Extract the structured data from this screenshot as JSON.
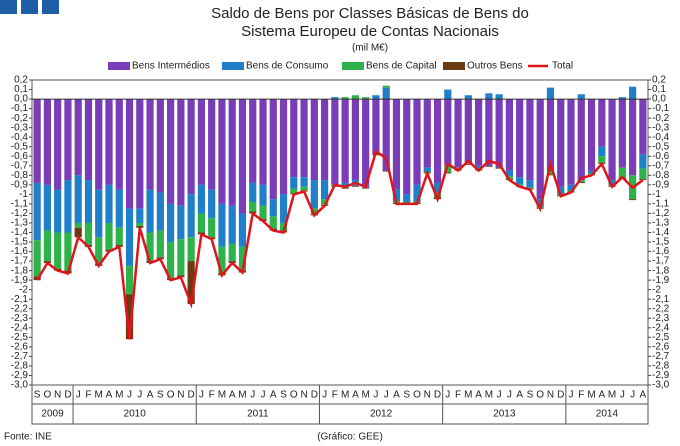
{
  "chart_data": {
    "type": "bar",
    "title": "Saldo de Bens por Classes Básicas de Bens do",
    "title_line2": "Sistema Europeu de Contas Nacionais",
    "subtitle": "(mil M€)",
    "source": "Fonte: INE",
    "credit": "(Gráfico: GEE)",
    "categories": [
      "S",
      "O",
      "N",
      "D",
      "J",
      "F",
      "M",
      "A",
      "M",
      "J",
      "J",
      "A",
      "S",
      "O",
      "N",
      "D",
      "J",
      "F",
      "M",
      "A",
      "M",
      "J",
      "J",
      "A",
      "S",
      "O",
      "N",
      "D",
      "J",
      "F",
      "M",
      "A",
      "M",
      "J",
      "J",
      "A",
      "S",
      "O",
      "N",
      "D",
      "J",
      "F",
      "M",
      "A",
      "M",
      "J",
      "J",
      "A",
      "S",
      "O",
      "N",
      "D",
      "J",
      "F",
      "M",
      "A",
      "M",
      "J",
      "J",
      "A"
    ],
    "years": [
      "2009",
      "2010",
      "2011",
      "2012",
      "2013",
      "2014"
    ],
    "ylim": [
      -3.0,
      0.2
    ],
    "yticks": [
      {
        "value": 0.2,
        "label": "0,2"
      },
      {
        "value": 0.1,
        "label": "0,1"
      },
      {
        "value": 0,
        "label": "0,0"
      },
      {
        "value": -0.1,
        "label": "-0,1"
      },
      {
        "value": -0.2,
        "label": "-0,2"
      },
      {
        "value": -0.3,
        "label": "-0,3"
      },
      {
        "value": -0.4,
        "label": "-0,4"
      },
      {
        "value": -0.5,
        "label": "-0,5"
      },
      {
        "value": -0.6,
        "label": "-0,6"
      },
      {
        "value": -0.7,
        "label": "-0,7"
      },
      {
        "value": -0.8,
        "label": "-0,8"
      },
      {
        "value": -0.9,
        "label": "-0,9"
      },
      -1,
      {
        "value": -1.1,
        "label": "-1,1"
      },
      {
        "value": -1.2,
        "label": "-1,2"
      },
      {
        "value": -1.3,
        "label": "-1,3"
      },
      {
        "value": -1.4,
        "label": "-1,4"
      },
      {
        "value": -1.5,
        "label": "-1,5"
      },
      {
        "value": -1.6,
        "label": "-1,6"
      },
      {
        "value": -1.7,
        "label": "-1,7"
      },
      {
        "value": -1.8,
        "label": "-1,8"
      },
      {
        "value": -1.9,
        "label": "-1,9"
      },
      -2,
      {
        "value": -2.1,
        "label": "-2,1"
      },
      {
        "value": -2.2,
        "label": "-2,2"
      },
      {
        "value": -2.3,
        "label": "-2,3"
      },
      {
        "value": -2.4,
        "label": "-2,4"
      },
      {
        "value": -2.5,
        "label": "-2,5"
      },
      {
        "value": -2.6,
        "label": "-2,6"
      },
      {
        "value": -2.7,
        "label": "-2,7"
      },
      {
        "value": -2.8,
        "label": "-2,8"
      },
      {
        "value": -2.9,
        "label": "-2,9"
      },
      {
        "value": -3.0,
        "label": "-3,0"
      }
    ],
    "series": [
      {
        "name": "Bens Intermédios",
        "color": "#7a3db8",
        "values": [
          -0.88,
          -0.9,
          -0.95,
          -0.85,
          -0.8,
          -0.85,
          -0.95,
          -0.9,
          -0.95,
          -1.15,
          -1.15,
          -0.95,
          -0.98,
          -1.1,
          -1.12,
          -1.0,
          -0.9,
          -0.95,
          -1.1,
          -1.12,
          -1.2,
          -0.88,
          -0.9,
          -1.05,
          -1.0,
          -0.82,
          -0.82,
          -0.85,
          -0.85,
          -0.9,
          -0.88,
          -0.85,
          -0.9,
          -0.58,
          -0.75,
          -0.95,
          -1.0,
          -0.9,
          -0.72,
          -0.88,
          -0.7,
          -0.72,
          -0.67,
          -0.7,
          -0.7,
          -0.72,
          -0.75,
          -0.82,
          -0.85,
          -1.05,
          -0.75,
          -0.92,
          -0.9,
          -0.85,
          -0.75,
          -0.5,
          -0.85,
          -0.72,
          -0.8,
          -0.58
        ]
      },
      {
        "name": "Bens de Consumo",
        "color": "#1f7fc8",
        "values": [
          -0.6,
          -0.48,
          -0.45,
          -0.55,
          -0.5,
          -0.45,
          -0.5,
          -0.4,
          -0.4,
          -0.6,
          -0.15,
          -0.45,
          -0.4,
          -0.4,
          -0.35,
          -0.45,
          -0.3,
          -0.3,
          -0.45,
          -0.4,
          -0.35,
          -0.2,
          -0.22,
          -0.18,
          -0.3,
          -0.12,
          -0.1,
          -0.3,
          -0.2,
          0.02,
          -0.05,
          -0.06,
          -0.03,
          0.04,
          0.12,
          -0.12,
          -0.08,
          -0.18,
          -0.04,
          -0.1,
          0.1,
          0.0,
          0.04,
          -0.03,
          0.06,
          0.05,
          -0.06,
          -0.08,
          -0.08,
          -0.08,
          0.12,
          -0.08,
          -0.06,
          0.05,
          -0.03,
          -0.1,
          -0.05,
          0.02,
          0.13,
          -0.15
        ]
      },
      {
        "name": "Bens de Capital",
        "color": "#2db34a",
        "values": [
          -0.38,
          -0.32,
          -0.38,
          -0.4,
          -0.05,
          -0.23,
          -0.28,
          -0.28,
          -0.18,
          -0.3,
          -0.03,
          -0.3,
          -0.28,
          -0.38,
          -0.38,
          -0.25,
          -0.2,
          -0.2,
          -0.28,
          -0.18,
          -0.25,
          -0.1,
          -0.14,
          -0.13,
          -0.08,
          -0.05,
          -0.04,
          -0.06,
          -0.06,
          -0.01,
          0.02,
          0.04,
          0.02,
          0.0,
          0.02,
          -0.02,
          -0.01,
          -0.01,
          -0.01,
          -0.05,
          -0.07,
          -0.02,
          -0.01,
          -0.01,
          0.0,
          0.0,
          -0.03,
          -0.01,
          -0.01,
          -0.01,
          -0.04,
          -0.01,
          -0.01,
          -0.02,
          -0.01,
          -0.07,
          -0.01,
          -0.1,
          -0.25,
          -0.11
        ]
      },
      {
        "name": "Outros Bens",
        "color": "#6b3a12",
        "values": [
          -0.04,
          -0.02,
          -0.02,
          -0.03,
          -0.1,
          -0.02,
          -0.02,
          -0.02,
          -0.02,
          -0.47,
          -0.02,
          -0.02,
          -0.02,
          -0.02,
          -0.02,
          -0.45,
          -0.02,
          -0.02,
          -0.02,
          -0.02,
          -0.02,
          -0.02,
          -0.02,
          -0.02,
          -0.02,
          -0.01,
          -0.01,
          -0.01,
          -0.01,
          -0.01,
          -0.01,
          -0.01,
          -0.01,
          -0.01,
          -0.01,
          -0.01,
          -0.01,
          -0.01,
          -0.01,
          -0.02,
          -0.01,
          -0.01,
          -0.01,
          -0.01,
          -0.01,
          -0.01,
          -0.01,
          -0.01,
          -0.01,
          -0.01,
          -0.01,
          -0.01,
          -0.01,
          -0.01,
          -0.01,
          -0.01,
          -0.01,
          -0.02,
          -0.01,
          -0.01
        ]
      },
      {
        "name": "Total",
        "color": "#e0151b",
        "type": "line",
        "values": [
          -1.9,
          -1.72,
          -1.8,
          -1.83,
          -1.45,
          -1.55,
          -1.75,
          -1.6,
          -1.55,
          -2.52,
          -1.35,
          -1.72,
          -1.68,
          -1.9,
          -1.87,
          -2.15,
          -1.42,
          -1.47,
          -1.85,
          -1.72,
          -1.82,
          -1.2,
          -1.28,
          -1.38,
          -1.4,
          -1.0,
          -0.97,
          -1.22,
          -1.12,
          -0.9,
          -0.92,
          -0.88,
          -0.92,
          -0.55,
          -0.62,
          -1.1,
          -1.1,
          -1.1,
          -0.78,
          -1.05,
          -0.68,
          -0.75,
          -0.65,
          -0.75,
          -0.65,
          -0.68,
          -0.85,
          -0.92,
          -0.95,
          -1.15,
          -0.68,
          -1.02,
          -0.98,
          -0.83,
          -0.8,
          -0.68,
          -0.92,
          -0.82,
          -0.93,
          -0.85
        ]
      }
    ]
  }
}
